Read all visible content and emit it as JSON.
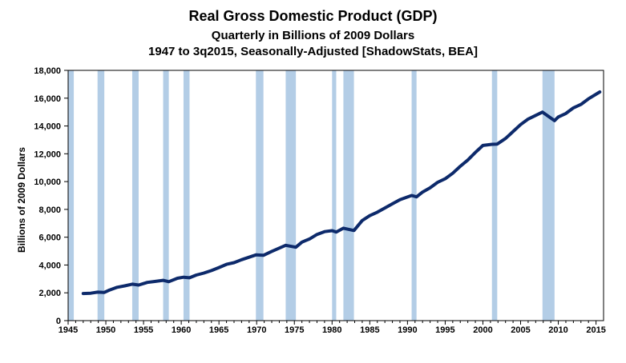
{
  "chart_data": {
    "type": "line",
    "title": "Real Gross Domestic Product (GDP)",
    "subtitle": "Quarterly in Billions of 2009 Dollars",
    "subtitle2": "1947 to 3q2015, Seasonally-Adjusted [ShadowStats, BEA]",
    "ylabel": "Billions of 2009 Dollars",
    "xlabel": "",
    "xlim": [
      1945,
      2016
    ],
    "ylim": [
      0,
      18000
    ],
    "xticks": [
      1945,
      1950,
      1955,
      1960,
      1965,
      1970,
      1975,
      1980,
      1985,
      1990,
      1995,
      2000,
      2005,
      2010,
      2015
    ],
    "yticks": [
      0,
      2000,
      4000,
      6000,
      8000,
      10000,
      12000,
      14000,
      16000,
      18000
    ],
    "ytick_labels": [
      "0",
      "2,000",
      "4,000",
      "6,000",
      "8,000",
      "10,000",
      "12,000",
      "14,000",
      "16,000",
      "18,000"
    ],
    "recessions": [
      [
        1945.0,
        1945.75
      ],
      [
        1948.9,
        1949.8
      ],
      [
        1953.5,
        1954.35
      ],
      [
        1957.6,
        1958.35
      ],
      [
        1960.3,
        1961.1
      ],
      [
        1969.9,
        1970.9
      ],
      [
        1973.85,
        1975.2
      ],
      [
        1980.0,
        1980.55
      ],
      [
        1981.5,
        1982.9
      ],
      [
        1990.55,
        1991.2
      ],
      [
        2001.2,
        2001.9
      ],
      [
        2007.9,
        2009.5
      ]
    ],
    "series": [
      {
        "name": "Real GDP",
        "color": "#0d2a6b",
        "x": [
          1947.0,
          1948.0,
          1948.9,
          1949.8,
          1950.5,
          1951.5,
          1952.5,
          1953.5,
          1954.35,
          1955.5,
          1956.5,
          1957.6,
          1958.35,
          1959.5,
          1960.3,
          1961.1,
          1962.0,
          1963.0,
          1964.0,
          1965.0,
          1966.0,
          1967.0,
          1968.0,
          1969.9,
          1970.9,
          1972.0,
          1973.85,
          1975.2,
          1976.0,
          1977.0,
          1978.0,
          1979.0,
          1980.0,
          1980.55,
          1981.5,
          1982.9,
          1984.0,
          1985.0,
          1986.0,
          1987.0,
          1988.0,
          1989.0,
          1990.55,
          1991.2,
          1992.0,
          1993.0,
          1994.0,
          1995.0,
          1996.0,
          1997.0,
          1998.0,
          1999.0,
          2000.0,
          2001.2,
          2001.9,
          2003.0,
          2004.0,
          2005.0,
          2006.0,
          2007.9,
          2009.5,
          2010.0,
          2011.0,
          2012.0,
          2013.0,
          2014.0,
          2015.5
        ],
        "values": [
          1950,
          1970,
          2050,
          2030,
          2200,
          2400,
          2500,
          2620,
          2560,
          2750,
          2820,
          2900,
          2800,
          3050,
          3120,
          3080,
          3280,
          3420,
          3600,
          3820,
          4050,
          4170,
          4380,
          4730,
          4700,
          4980,
          5420,
          5280,
          5650,
          5870,
          6200,
          6400,
          6470,
          6370,
          6650,
          6480,
          7200,
          7550,
          7800,
          8100,
          8400,
          8700,
          9000,
          8900,
          9250,
          9550,
          9950,
          10200,
          10600,
          11100,
          11550,
          12100,
          12600,
          12680,
          12700,
          13100,
          13600,
          14100,
          14500,
          15000,
          14380,
          14650,
          14900,
          15300,
          15550,
          15950,
          16450
        ]
      }
    ]
  }
}
